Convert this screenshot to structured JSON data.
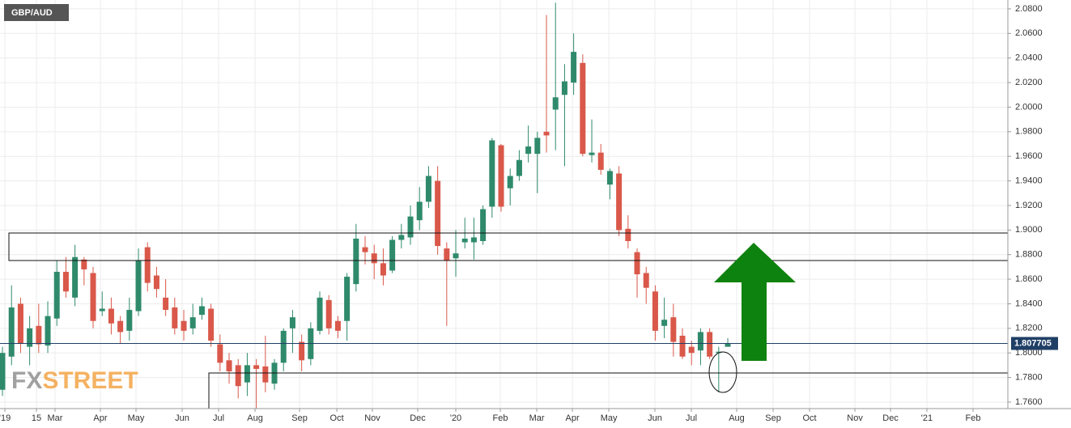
{
  "chart_data": {
    "type": "candlestick",
    "title": "GBP/AUD",
    "watermark": [
      "FX",
      "STREET"
    ],
    "up_color": "#2f8a6c",
    "down_color": "#d9584a",
    "grid": true,
    "current_price": 1.807705,
    "xlim": [
      -0.27,
      110.89
    ],
    "ylim": [
      1.7547,
      2.0872
    ],
    "yticks": [
      {
        "value": 1.76,
        "label": "1.7600"
      },
      {
        "value": 1.78,
        "label": "1.7800"
      },
      {
        "value": 1.8,
        "label": "1.8000"
      },
      {
        "value": 1.82,
        "label": "1.8200"
      },
      {
        "value": 1.84,
        "label": "1.8400"
      },
      {
        "value": 1.86,
        "label": "1.8600"
      },
      {
        "value": 1.88,
        "label": "1.8800"
      },
      {
        "value": 1.9,
        "label": "1.9000"
      },
      {
        "value": 1.92,
        "label": "1.9200"
      },
      {
        "value": 1.94,
        "label": "1.9400"
      },
      {
        "value": 1.96,
        "label": "1.9600"
      },
      {
        "value": 1.98,
        "label": "1.9800"
      },
      {
        "value": 2.0,
        "label": "2.0000"
      },
      {
        "value": 2.02,
        "label": "2.0200"
      },
      {
        "value": 2.04,
        "label": "2.0400"
      },
      {
        "value": 2.06,
        "label": "2.0600"
      },
      {
        "value": 2.08,
        "label": "2.0800"
      }
    ],
    "xticks": [
      {
        "value": 0.27,
        "label": "'19"
      },
      {
        "value": 3.75,
        "label": "15"
      },
      {
        "value": 5.8,
        "label": "Mar"
      },
      {
        "value": 10.8,
        "label": "Apr"
      },
      {
        "value": 14.73,
        "label": "May"
      },
      {
        "value": 19.82,
        "label": "Jun"
      },
      {
        "value": 23.84,
        "label": "Jul"
      },
      {
        "value": 27.86,
        "label": "Aug"
      },
      {
        "value": 32.77,
        "label": "Sep"
      },
      {
        "value": 36.88,
        "label": "Oct"
      },
      {
        "value": 40.8,
        "label": "Nov"
      },
      {
        "value": 45.8,
        "label": "Dec"
      },
      {
        "value": 50,
        "label": "'20"
      },
      {
        "value": 54.91,
        "label": "Feb"
      },
      {
        "value": 58.93,
        "label": "Mar"
      },
      {
        "value": 62.86,
        "label": "Apr"
      },
      {
        "value": 66.88,
        "label": "May"
      },
      {
        "value": 71.96,
        "label": "Jun"
      },
      {
        "value": 75.98,
        "label": "Jul"
      },
      {
        "value": 80.98,
        "label": "Aug"
      },
      {
        "value": 85,
        "label": "Sep"
      },
      {
        "value": 89.02,
        "label": "Oct"
      },
      {
        "value": 94.02,
        "label": "Nov"
      },
      {
        "value": 97.95,
        "label": "Dec"
      },
      {
        "value": 101.96,
        "label": "'21"
      },
      {
        "value": 107.05,
        "label": "Feb"
      }
    ],
    "x": [
      0,
      1,
      2,
      3,
      4,
      5,
      6,
      7,
      8,
      9,
      10,
      11,
      12,
      13,
      14,
      15,
      16,
      17,
      18,
      19,
      20,
      21,
      22,
      23,
      24,
      25,
      26,
      27,
      28,
      29,
      30,
      31,
      32,
      33,
      34,
      35,
      36,
      37,
      38,
      39,
      40,
      41,
      42,
      43,
      44,
      45,
      46,
      47,
      48,
      49,
      50,
      51,
      52,
      53,
      54,
      55,
      56,
      57,
      58,
      59,
      60,
      61,
      62,
      63,
      64,
      65,
      66,
      67,
      68,
      69,
      70,
      71,
      72,
      73,
      74,
      75,
      76,
      77,
      78,
      79,
      80
    ],
    "open": [
      1.77,
      1.797,
      1.84,
      1.805,
      1.822,
      1.806,
      1.828,
      1.866,
      1.845,
      1.876,
      1.865,
      1.834,
      1.836,
      1.826,
      1.818,
      1.834,
      1.886,
      1.863,
      1.845,
      1.837,
      1.826,
      1.82,
      1.831,
      1.836,
      1.807,
      1.794,
      1.79,
      1.776,
      1.79,
      1.789,
      1.775,
      1.792,
      1.82,
      1.809,
      1.795,
      1.818,
      1.843,
      1.826,
      1.826,
      1.856,
      1.886,
      1.881,
      1.873,
      1.867,
      1.892,
      1.894,
      1.908,
      1.923,
      1.94,
      1.885,
      1.877,
      1.89,
      1.89,
      1.891,
      1.919,
      1.969,
      1.934,
      1.944,
      1.962,
      1.962,
      1.98,
      1.998,
      2.01,
      2.02,
      2.036,
      1.961,
      1.963,
      1.937,
      1.946,
      1.901,
      1.882,
      1.865,
      1.85,
      1.822,
      1.829,
      1.814,
      1.805,
      1.802,
      1.817,
      1.8,
      1.805
    ],
    "high": [
      1.805,
      1.855,
      1.845,
      1.83,
      1.84,
      1.842,
      1.875,
      1.878,
      1.888,
      1.878,
      1.87,
      1.85,
      1.845,
      1.83,
      1.845,
      1.885,
      1.89,
      1.87,
      1.86,
      1.845,
      1.835,
      1.84,
      1.845,
      1.84,
      1.815,
      1.8,
      1.795,
      1.8,
      1.795,
      1.814,
      1.795,
      1.82,
      1.835,
      1.815,
      1.825,
      1.85,
      1.847,
      1.83,
      1.865,
      1.905,
      1.895,
      1.888,
      1.885,
      1.895,
      1.905,
      1.92,
      1.935,
      1.952,
      1.952,
      1.89,
      1.9,
      1.91,
      1.91,
      1.92,
      1.975,
      1.97,
      1.95,
      1.965,
      1.985,
      1.98,
      2.075,
      2.085,
      2.035,
      2.06,
      2.043,
      1.99,
      1.97,
      1.95,
      1.952,
      1.912,
      1.885,
      1.87,
      1.855,
      1.845,
      1.84,
      1.82,
      1.81,
      1.82,
      1.82,
      1.805,
      1.812
    ],
    "low": [
      1.765,
      1.79,
      1.8,
      1.79,
      1.8,
      1.8,
      1.822,
      1.845,
      1.838,
      1.855,
      1.82,
      1.83,
      1.815,
      1.808,
      1.81,
      1.83,
      1.85,
      1.845,
      1.83,
      1.815,
      1.81,
      1.815,
      1.827,
      1.805,
      1.785,
      1.775,
      1.763,
      1.765,
      1.755,
      1.768,
      1.77,
      1.785,
      1.8,
      1.785,
      1.79,
      1.815,
      1.815,
      1.812,
      1.81,
      1.85,
      1.872,
      1.86,
      1.855,
      1.865,
      1.885,
      1.888,
      1.9,
      1.918,
      1.88,
      1.822,
      1.862,
      1.885,
      1.876,
      1.888,
      1.91,
      1.915,
      1.92,
      1.94,
      1.955,
      1.93,
      1.963,
      1.965,
      1.952,
      2.01,
      1.96,
      1.955,
      1.945,
      1.925,
      1.895,
      1.885,
      1.845,
      1.84,
      1.81,
      1.812,
      1.797,
      1.795,
      1.79,
      1.79,
      1.795,
      1.768,
      1.805
    ],
    "close": [
      1.8,
      1.837,
      1.808,
      1.82,
      1.807,
      1.83,
      1.866,
      1.85,
      1.878,
      1.868,
      1.826,
      1.836,
      1.824,
      1.817,
      1.835,
      1.875,
      1.857,
      1.852,
      1.835,
      1.82,
      1.818,
      1.829,
      1.838,
      1.81,
      1.792,
      1.785,
      1.773,
      1.79,
      1.787,
      1.776,
      1.792,
      1.818,
      1.829,
      1.794,
      1.82,
      1.845,
      1.82,
      1.818,
      1.862,
      1.893,
      1.882,
      1.873,
      1.863,
      1.892,
      1.896,
      1.911,
      1.923,
      1.944,
      1.887,
      1.875,
      1.881,
      1.893,
      1.894,
      1.917,
      1.973,
      1.919,
      1.944,
      1.957,
      1.968,
      1.975,
      1.977,
      2.008,
      2.021,
      2.045,
      1.962,
      1.963,
      1.949,
      1.948,
      1.9,
      1.891,
      1.864,
      1.853,
      1.818,
      1.827,
      1.809,
      1.797,
      1.8,
      1.817,
      1.797,
      1.801,
      1.807705
    ]
  }
}
